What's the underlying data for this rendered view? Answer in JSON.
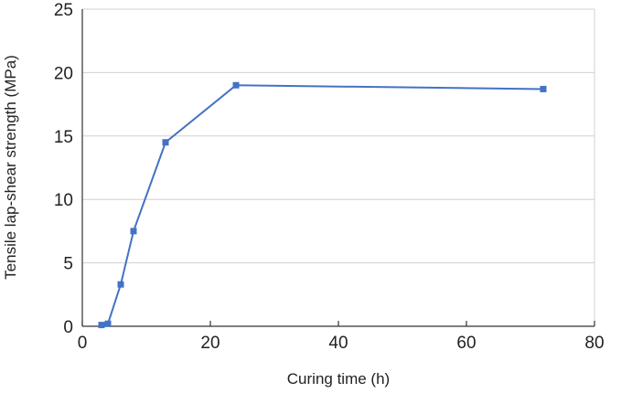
{
  "chart_data": {
    "type": "line",
    "title": "",
    "xlabel": "Curing time (h)",
    "ylabel": "Tensile lap-shear strength (MPa)",
    "xlim": [
      0,
      80
    ],
    "ylim": [
      0,
      25
    ],
    "xticks": [
      0,
      20,
      40,
      60,
      80
    ],
    "yticks": [
      0,
      5,
      10,
      15,
      20,
      25
    ],
    "grid": "horizontal",
    "legend": "none",
    "series": [
      {
        "color": "#4472c4",
        "marker": "square",
        "points": [
          {
            "x": 3,
            "y": 0.1
          },
          {
            "x": 4,
            "y": 0.2
          },
          {
            "x": 6,
            "y": 3.3
          },
          {
            "x": 8,
            "y": 7.5
          },
          {
            "x": 13,
            "y": 14.5
          },
          {
            "x": 24,
            "y": 19.0
          },
          {
            "x": 72,
            "y": 18.7
          }
        ]
      }
    ]
  }
}
